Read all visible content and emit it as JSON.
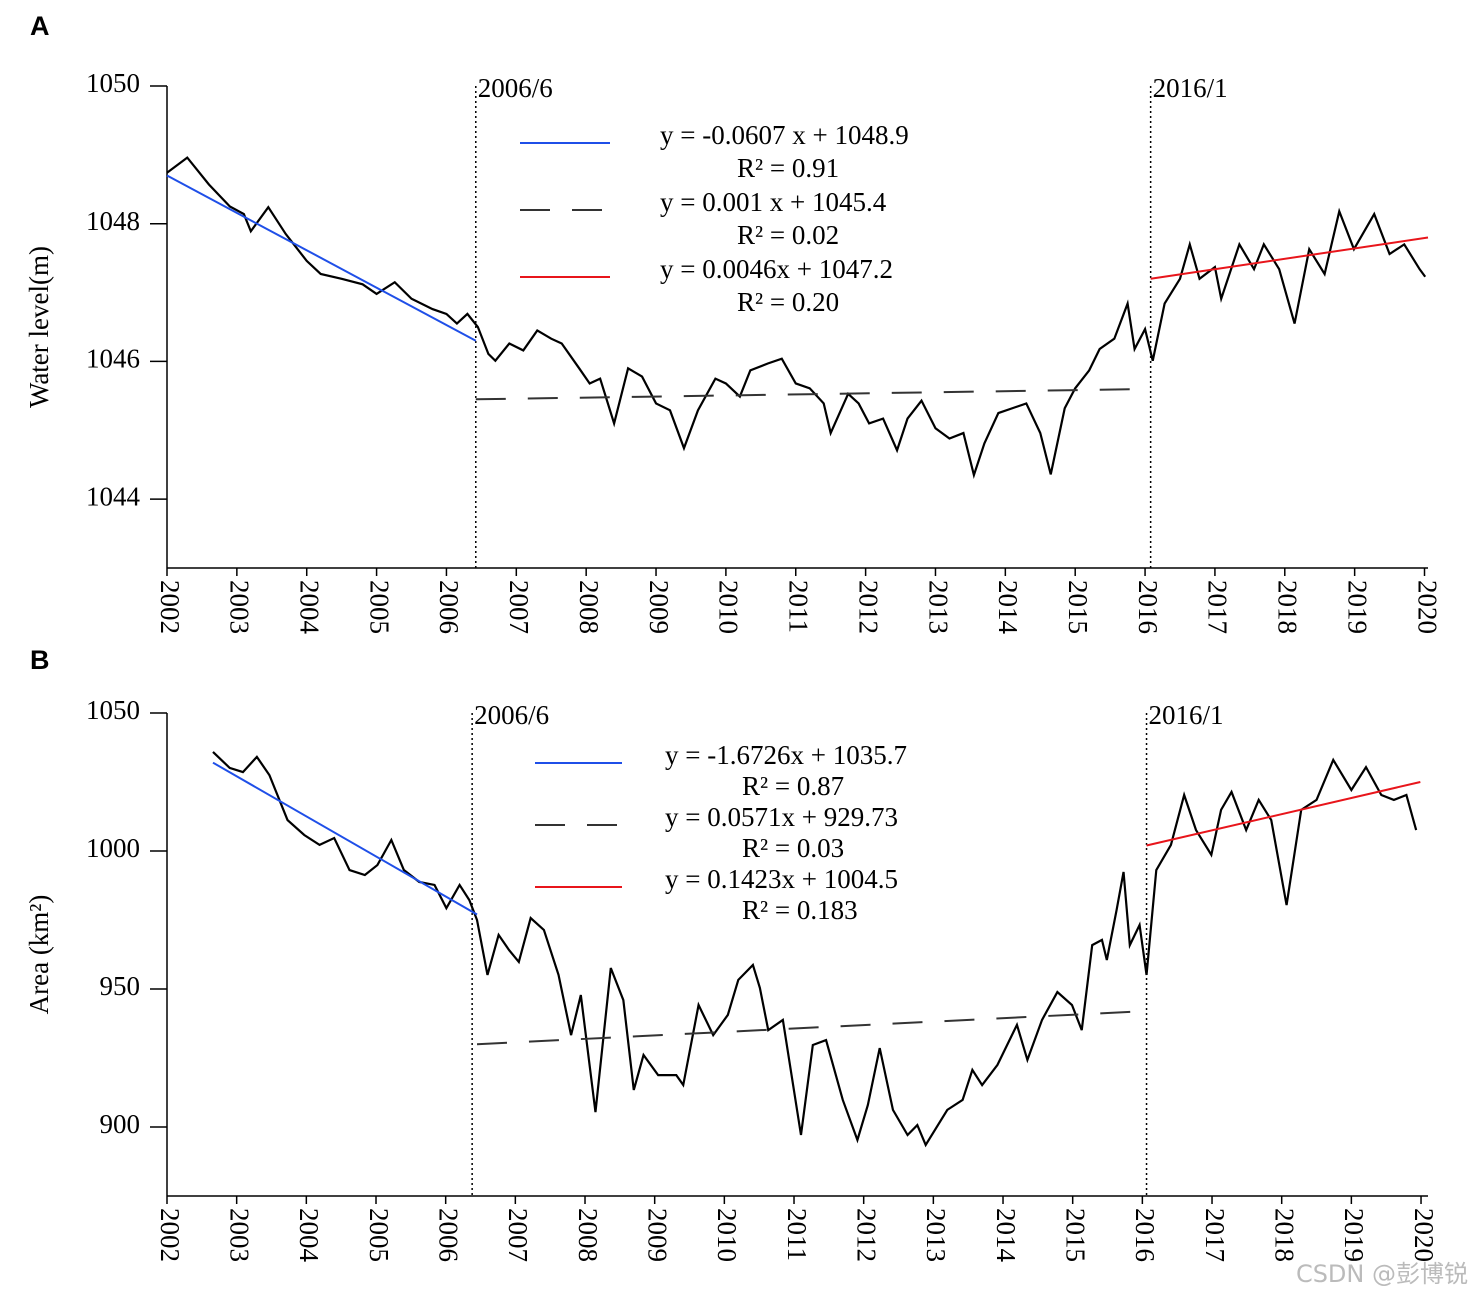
{
  "chart_data": [
    {
      "type": "line",
      "panel_label": "A",
      "ylabel": "Water level(m)",
      "xlim": [
        2002,
        2020.05
      ],
      "xticks": [
        2002,
        2003,
        2004,
        2005,
        2006,
        2007,
        2008,
        2009,
        2010,
        2011,
        2012,
        2013,
        2014,
        2015,
        2016,
        2017,
        2018,
        2019,
        2020
      ],
      "ylim": [
        1043,
        1050
      ],
      "yticks": [
        1044,
        1046,
        1048,
        1050
      ],
      "annotations": [
        {
          "text": "2006/6",
          "x": 2006.42
        },
        {
          "text": "2016/1",
          "x": 2016.08
        }
      ],
      "series": [
        {
          "color": "#000000",
          "x": [
            2002.0,
            2002.29,
            2002.6,
            2002.9,
            2003.1,
            2003.2,
            2003.45,
            2003.7,
            2004.0,
            2004.2,
            2004.5,
            2004.8,
            2005.0,
            2005.26,
            2005.5,
            2005.8,
            2006.0,
            2006.15,
            2006.3,
            2006.45,
            2006.6,
            2006.7,
            2006.9,
            2007.1,
            2007.3,
            2007.5,
            2007.65,
            2007.9,
            2008.05,
            2008.2,
            2008.4,
            2008.6,
            2008.8,
            2009.0,
            2009.2,
            2009.4,
            2009.6,
            2009.85,
            2010.0,
            2010.2,
            2010.35,
            2010.6,
            2010.8,
            2011.0,
            2011.2,
            2011.4,
            2011.5,
            2011.75,
            2011.9,
            2012.05,
            2012.25,
            2012.45,
            2012.6,
            2012.8,
            2013.0,
            2013.2,
            2013.4,
            2013.55,
            2013.7,
            2013.9,
            2014.1,
            2014.3,
            2014.5,
            2014.65,
            2014.85,
            2015.0,
            2015.2,
            2015.35,
            2015.56,
            2015.75,
            2015.85,
            2016.0,
            2016.11,
            2016.28,
            2016.5,
            2016.64,
            2016.78,
            2017.0,
            2017.09,
            2017.35,
            2017.56,
            2017.7,
            2017.92,
            2018.14,
            2018.35,
            2018.57,
            2018.78,
            2018.99,
            2019.28,
            2019.5,
            2019.71,
            2019.93,
            2020.01
          ],
          "values": [
            1048.74,
            1048.96,
            1048.57,
            1048.25,
            1048.14,
            1047.89,
            1048.24,
            1047.85,
            1047.46,
            1047.27,
            1047.2,
            1047.12,
            1046.98,
            1047.15,
            1046.91,
            1046.76,
            1046.69,
            1046.55,
            1046.69,
            1046.5,
            1046.11,
            1046.01,
            1046.26,
            1046.16,
            1046.45,
            1046.33,
            1046.26,
            1045.9,
            1045.68,
            1045.75,
            1045.1,
            1045.9,
            1045.78,
            1045.39,
            1045.29,
            1044.74,
            1045.29,
            1045.75,
            1045.68,
            1045.49,
            1045.87,
            1045.97,
            1046.04,
            1045.68,
            1045.61,
            1045.39,
            1044.96,
            1045.53,
            1045.39,
            1045.1,
            1045.17,
            1044.71,
            1045.17,
            1045.43,
            1045.03,
            1044.88,
            1044.96,
            1044.35,
            1044.81,
            1045.25,
            1045.32,
            1045.39,
            1044.96,
            1044.36,
            1045.32,
            1045.61,
            1045.87,
            1046.18,
            1046.33,
            1046.84,
            1046.18,
            1046.47,
            1046.01,
            1046.84,
            1047.2,
            1047.7,
            1047.2,
            1047.37,
            1046.91,
            1047.7,
            1047.34,
            1047.7,
            1047.34,
            1046.55,
            1047.63,
            1047.27,
            1048.18,
            1047.63,
            1048.14,
            1047.56,
            1047.7,
            1047.34,
            1047.23
          ]
        },
        {
          "name": "y = -0.0607 x + 1048.9",
          "r2": "R² = 0.91",
          "color": "#1f4fe8",
          "x": [
            2002.0,
            2006.42
          ],
          "values": [
            1048.7,
            1046.3
          ]
        },
        {
          "name": "y = 0.001 x + 1045.4",
          "r2": "R² = 0.02",
          "color": "#333333",
          "dash": true,
          "x": [
            2006.42,
            2016.08
          ],
          "values": [
            1045.45,
            1045.6
          ]
        },
        {
          "name": "y = 0.0046x + 1047.2",
          "r2": "R² = 0.20",
          "color": "#e8151b",
          "x": [
            2016.08,
            2020.05
          ],
          "values": [
            1047.2,
            1047.8
          ]
        }
      ]
    },
    {
      "type": "line",
      "panel_label": "B",
      "ylabel": "Area (km²)",
      "xlim": [
        2002,
        2020.1
      ],
      "xticks": [
        2002,
        2003,
        2004,
        2005,
        2006,
        2007,
        2008,
        2009,
        2010,
        2011,
        2012,
        2013,
        2014,
        2015,
        2016,
        2017,
        2018,
        2019,
        2020
      ],
      "ylim": [
        875,
        1050
      ],
      "yticks": [
        900,
        950,
        1000,
        1050
      ],
      "annotations": [
        {
          "text": "2006/6",
          "x": 2006.38
        },
        {
          "text": "2016/1",
          "x": 2016.06
        }
      ],
      "watermark": "CSDN @彭博锐",
      "series": [
        {
          "color": "#000000",
          "x": [
            2002.66,
            2002.9,
            2003.09,
            2003.29,
            2003.47,
            2003.73,
            2003.97,
            2004.19,
            2004.4,
            2004.62,
            2004.84,
            2005.02,
            2005.22,
            2005.4,
            2005.62,
            2005.84,
            2006.01,
            2006.2,
            2006.34,
            2006.45,
            2006.6,
            2006.76,
            2006.91,
            2007.05,
            2007.22,
            2007.41,
            2007.62,
            2007.8,
            2007.94,
            2008.15,
            2008.37,
            2008.55,
            2008.7,
            2008.84,
            2009.05,
            2009.31,
            2009.41,
            2009.63,
            2009.84,
            2010.05,
            2010.2,
            2010.41,
            2010.51,
            2010.63,
            2010.84,
            2011.1,
            2011.27,
            2011.46,
            2011.7,
            2011.91,
            2012.06,
            2012.23,
            2012.42,
            2012.63,
            2012.77,
            2012.89,
            2013.2,
            2013.42,
            2013.56,
            2013.7,
            2013.92,
            2014.2,
            2014.35,
            2014.56,
            2014.78,
            2014.99,
            2015.13,
            2015.28,
            2015.42,
            2015.49,
            2015.63,
            2015.73,
            2015.82,
            2015.96,
            2016.06,
            2016.2,
            2016.41,
            2016.6,
            2016.77,
            2016.99,
            2017.13,
            2017.28,
            2017.49,
            2017.67,
            2017.85,
            2018.07,
            2018.28,
            2018.5,
            2018.74,
            2019.0,
            2019.21,
            2019.43,
            2019.61,
            2019.79,
            2019.93
          ],
          "values": [
            1035.9,
            1030.1,
            1028.6,
            1034.1,
            1027.5,
            1011.2,
            1005.8,
            1002.2,
            1004.7,
            993.1,
            991.3,
            994.9,
            1004.0,
            993.1,
            988.8,
            987.7,
            979.3,
            987.7,
            982.2,
            975.0,
            955.1,
            969.6,
            964.1,
            959.8,
            975.7,
            971.4,
            955.1,
            933.3,
            947.8,
            905.4,
            957.6,
            946.0,
            913.4,
            926.1,
            918.8,
            918.8,
            915.2,
            944.2,
            933.3,
            940.6,
            953.3,
            958.7,
            950.4,
            935.1,
            938.8,
            897.1,
            929.7,
            931.5,
            909.8,
            895.3,
            908.0,
            928.6,
            906.2,
            897.1,
            900.7,
            893.5,
            906.2,
            909.8,
            920.7,
            915.2,
            922.5,
            937.0,
            924.3,
            938.8,
            948.9,
            944.2,
            935.1,
            965.9,
            967.8,
            960.5,
            978.6,
            992.4,
            965.9,
            973.2,
            955.1,
            993.1,
            1002.2,
            1020.3,
            1007.6,
            998.6,
            1014.9,
            1021.4,
            1007.6,
            1018.5,
            1011.2,
            980.4,
            1014.9,
            1018.5,
            1033.0,
            1022.1,
            1030.4,
            1020.3,
            1018.5,
            1020.3,
            1007.6
          ]
        },
        {
          "name": "y = -1.6726x + 1035.7",
          "r2": "R² = 0.87",
          "color": "#1f4fe8",
          "x": [
            2002.66,
            2006.45
          ],
          "values": [
            1032,
            977
          ]
        },
        {
          "name": "y = 0.0571x + 929.73",
          "r2": "R² = 0.03",
          "color": "#333333",
          "dash": true,
          "x": [
            2006.45,
            2016.06
          ],
          "values": [
            930,
            942
          ]
        },
        {
          "name": "y = 0.1423x + 1004.5",
          "r2": "R² = 0.183",
          "color": "#e8151b",
          "x": [
            2016.06,
            2019.99
          ],
          "values": [
            1002,
            1025
          ]
        }
      ]
    }
  ]
}
